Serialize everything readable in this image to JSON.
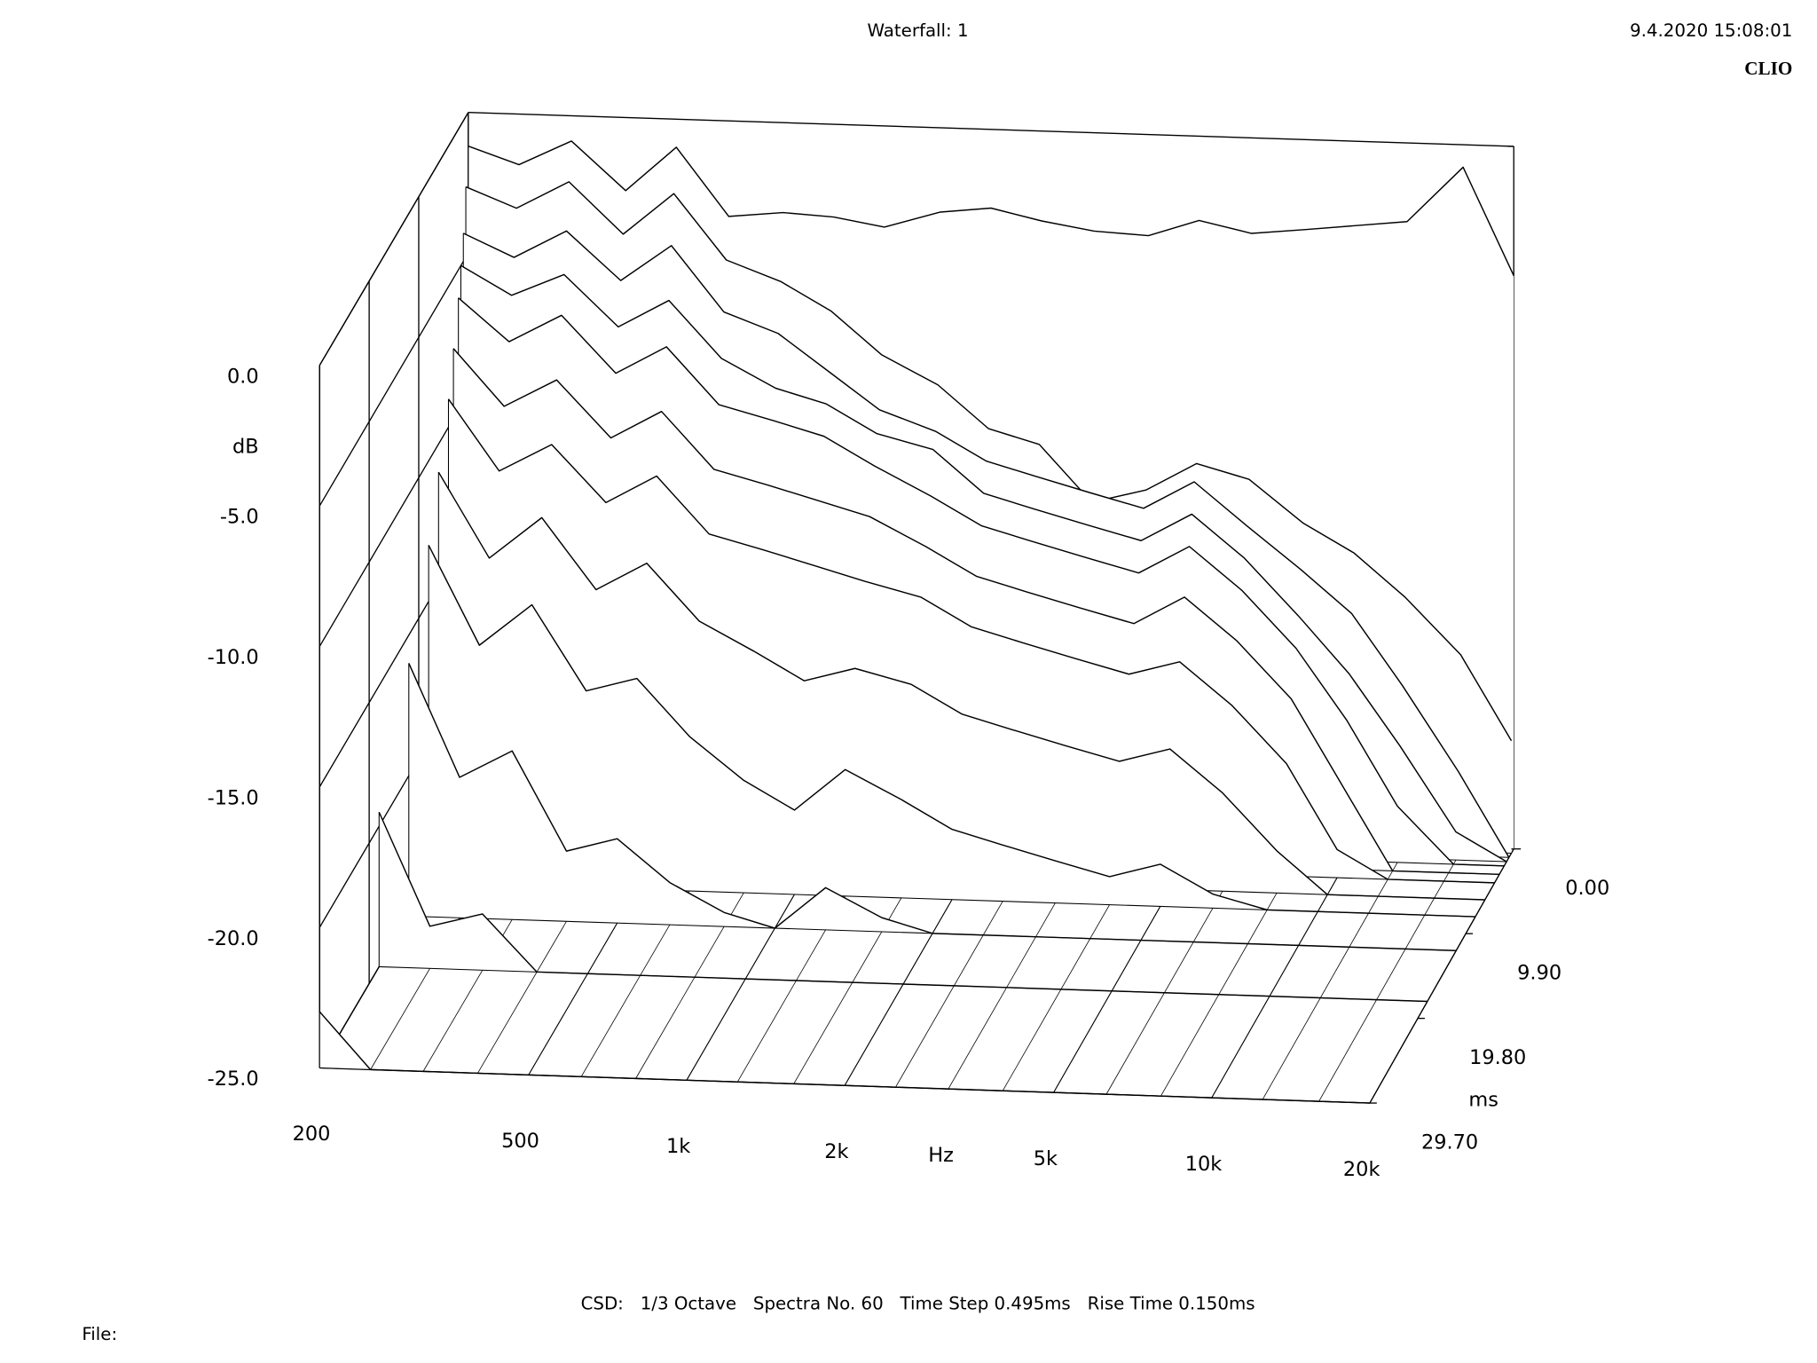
{
  "chart_data": {
    "type": "waterfall",
    "title": "Waterfall: 1",
    "date": "9.4.2020 15:08:01",
    "brand": "CLIO",
    "footer": "CSD:   1/3 Octave   Spectra No. 60   Time Step 0.495ms   Rise Time 0.150ms",
    "file_label": "File:",
    "xlabel": "Hz",
    "ylabel": "dB",
    "zlabel": "ms",
    "xscale": "log",
    "xlim": [
      200,
      20000
    ],
    "xticks": [
      200,
      500,
      {
        "value": 1000,
        "label": "1k"
      },
      {
        "value": 2000,
        "label": "2k"
      },
      {
        "value": 5000,
        "label": "5k"
      },
      {
        "value": 10000,
        "label": "10k"
      },
      {
        "value": 20000,
        "label": "20k"
      }
    ],
    "ylim": [
      -25,
      0
    ],
    "yticks": [
      {
        "value": 0,
        "label": "0.0"
      },
      {
        "value": -5,
        "label": "-5.0"
      },
      {
        "value": -10,
        "label": "-10.0"
      },
      {
        "value": -15,
        "label": "-15.0"
      },
      {
        "value": -20,
        "label": "-20.0"
      },
      {
        "value": -25,
        "label": "-25.0"
      }
    ],
    "zlim": [
      0,
      29.7
    ],
    "zticks": [
      {
        "value": 0,
        "label": "0.00"
      },
      {
        "value": 9.9,
        "label": "9.90"
      },
      {
        "value": 19.8,
        "label": "19.80"
      },
      {
        "value": 29.7,
        "label": "29.70"
      }
    ],
    "color": "#000000",
    "x": [
      200,
      250,
      315,
      400,
      500,
      630,
      800,
      1000,
      1250,
      1600,
      2000,
      2500,
      3150,
      4000,
      5000,
      6300,
      8000,
      10000,
      12500,
      16000,
      20000
    ],
    "z": [
      0,
      0.495,
      0.99,
      1.485,
      1.98,
      2.97,
      3.96,
      5.94,
      7.92,
      11.88,
      17.82,
      29.7
    ],
    "values": [
      [
        -1.2,
        -1.8,
        -0.9,
        -2.6,
        -1.0,
        -3.4,
        -3.2,
        -3.3,
        -3.6,
        -3.0,
        -2.8,
        -3.2,
        -3.5,
        -3.6,
        -3.0,
        -3.4,
        -3.2,
        -3.0,
        -2.8,
        -0.8,
        -4.6
      ],
      [
        -2.5,
        -3.2,
        -2.2,
        -4.0,
        -2.5,
        -4.8,
        -5.5,
        -6.5,
        -8.0,
        -9.0,
        -10.5,
        -11.0,
        -13.0,
        -12.5,
        -11.5,
        -12.0,
        -13.5,
        -14.5,
        -16.0,
        -18.0,
        -21.0
      ],
      [
        -4.0,
        -4.8,
        -3.8,
        -5.5,
        -4.2,
        -6.5,
        -7.2,
        -8.5,
        -9.8,
        -10.5,
        -11.5,
        -12.0,
        -12.5,
        -13.0,
        -12.0,
        -13.5,
        -15.0,
        -16.5,
        -19.0,
        -22.0,
        -25.0
      ],
      [
        -5.0,
        -6.0,
        -5.2,
        -7.0,
        -6.0,
        -8.0,
        -9.0,
        -9.5,
        -10.5,
        -11.0,
        -12.5,
        -13.0,
        -13.5,
        -14.0,
        -13.0,
        -14.5,
        -16.5,
        -18.5,
        -21.0,
        -24.0,
        -25.0
      ],
      [
        -6.0,
        -7.5,
        -6.5,
        -8.5,
        -7.5,
        -9.5,
        -10.0,
        -10.5,
        -11.5,
        -12.5,
        -13.5,
        -14.0,
        -14.5,
        -15.0,
        -14.0,
        -15.5,
        -17.5,
        -20.0,
        -23.0,
        -25.0,
        -25.0
      ],
      [
        -7.5,
        -9.5,
        -8.5,
        -10.5,
        -9.5,
        -11.5,
        -12.0,
        -12.5,
        -13.0,
        -14.0,
        -15.0,
        -15.5,
        -16.0,
        -16.5,
        -15.5,
        -17.0,
        -19.0,
        -22.0,
        -25.0,
        -25.0,
        -25.0
      ],
      [
        -9.0,
        -11.5,
        -10.5,
        -12.5,
        -11.5,
        -13.5,
        -14.0,
        -14.5,
        -15.0,
        -15.5,
        -16.5,
        -17.0,
        -17.5,
        -18.0,
        -17.5,
        -19.0,
        -21.0,
        -24.0,
        -25.0,
        -25.0,
        -25.0
      ],
      [
        -11.0,
        -14.0,
        -12.5,
        -15.0,
        -14.0,
        -16.0,
        -17.0,
        -18.0,
        -17.5,
        -18.0,
        -19.0,
        -19.5,
        -20.0,
        -20.5,
        -20.0,
        -21.5,
        -23.5,
        -25.0,
        -25.0,
        -25.0,
        -25.0
      ],
      [
        -13.0,
        -16.5,
        -15.0,
        -18.0,
        -17.5,
        -19.5,
        -21.0,
        -22.0,
        -20.5,
        -21.5,
        -22.5,
        -23.0,
        -23.5,
        -24.0,
        -23.5,
        -24.5,
        -25.0,
        -25.0,
        -25.0,
        -25.0,
        -25.0
      ],
      [
        -16.0,
        -20.0,
        -19.0,
        -22.5,
        -22.0,
        -23.5,
        -24.5,
        -25.0,
        -23.5,
        -24.5,
        -25.0,
        -25.0,
        -25.0,
        -25.0,
        -25.0,
        -25.0,
        -25.0,
        -25.0,
        -25.0,
        -25.0,
        -25.0
      ],
      [
        -19.5,
        -23.5,
        -23.0,
        -25.0,
        -25.0,
        -25.0,
        -25.0,
        -25.0,
        -25.0,
        -25.0,
        -25.0,
        -25.0,
        -25.0,
        -25.0,
        -25.0,
        -25.0,
        -25.0,
        -25.0,
        -25.0,
        -25.0,
        -25.0
      ],
      [
        -23.0,
        -25.0,
        -25.0,
        -25.0,
        -25.0,
        -25.0,
        -25.0,
        -25.0,
        -25.0,
        -25.0,
        -25.0,
        -25.0,
        -25.0,
        -25.0,
        -25.0,
        -25.0,
        -25.0,
        -25.0,
        -25.0,
        -25.0,
        -25.0
      ]
    ]
  }
}
